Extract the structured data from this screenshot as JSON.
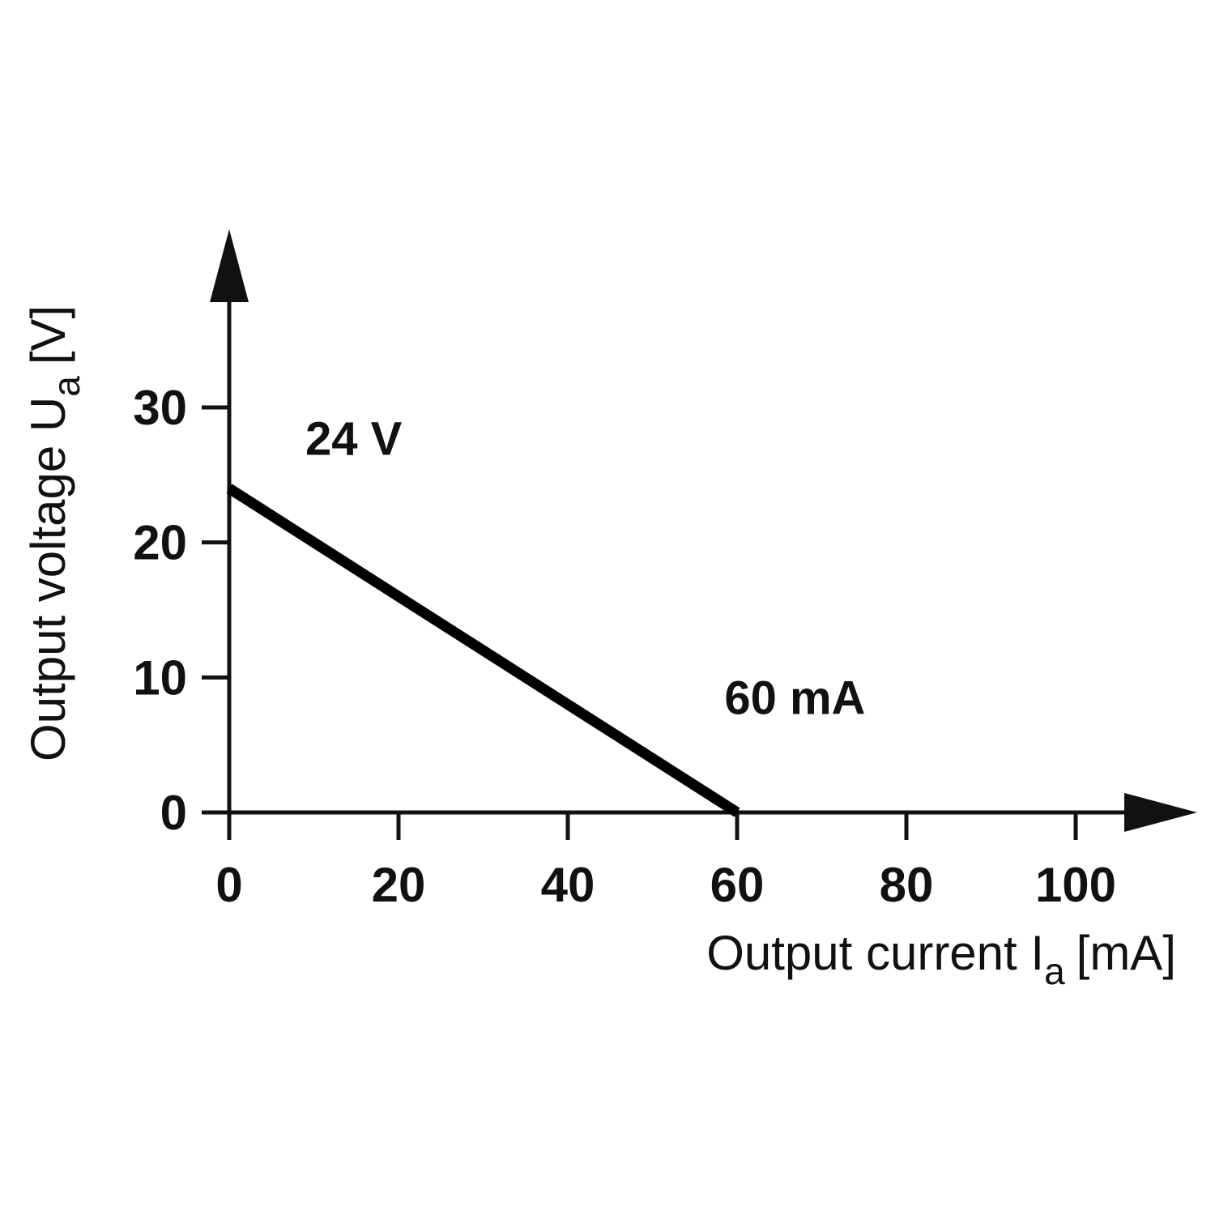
{
  "chart_data": {
    "type": "line",
    "xlabel": "Output current I",
    "xlabel_subscript": "a",
    "xlabel_unit": "[mA]",
    "ylabel": "Output voltage U",
    "ylabel_subscript": "a",
    "ylabel_unit": "[V]",
    "xlim": [
      0,
      100
    ],
    "ylim": [
      0,
      30
    ],
    "x_ticks": [
      0,
      20,
      40,
      60,
      80,
      100
    ],
    "y_ticks": [
      0,
      10,
      20,
      30
    ],
    "grid": false,
    "series": [
      {
        "x": [
          0,
          60
        ],
        "y": [
          24,
          0
        ]
      }
    ],
    "annotations": [
      {
        "text": "24 V",
        "x": 9,
        "y": 26.5
      },
      {
        "text": "60 mA",
        "x": 58.5,
        "y": 7.3
      }
    ],
    "colors": {
      "line": "#000000",
      "axis": "#111111",
      "text": "#111111"
    }
  }
}
